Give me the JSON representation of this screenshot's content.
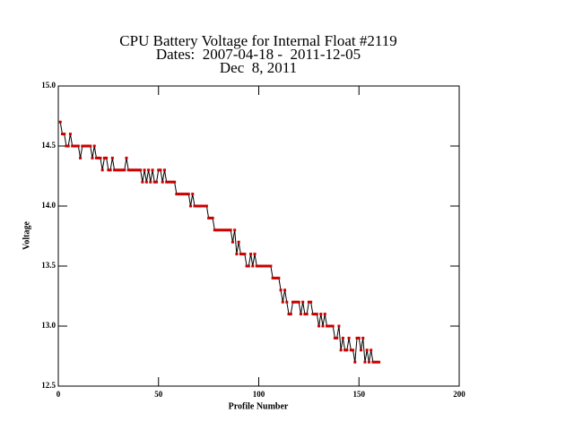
{
  "chart_data": {
    "type": "line",
    "title": [
      "CPU Battery Voltage for Internal Float #2119",
      "Dates:  2007-04-18 -  2011-12-05",
      "Dec  8, 2011"
    ],
    "x_label": "Profile Number",
    "y_label": "Voltage",
    "line_color": "#000000",
    "marker_color": "#cc0000",
    "xlim": [
      0,
      200
    ],
    "xticks": [
      0,
      50,
      100,
      150,
      200
    ],
    "ylim": [
      12.5,
      15
    ],
    "yticks": [
      {
        "value": 15,
        "label": "15.0"
      },
      14.5,
      {
        "value": 14,
        "label": "14.0"
      },
      13.5,
      {
        "value": 13,
        "label": "13.0"
      },
      12.5
    ],
    "x": [
      1,
      2,
      3,
      4,
      5,
      6,
      7,
      8,
      9,
      10,
      11,
      12,
      13,
      14,
      15,
      16,
      17,
      18,
      19,
      20,
      21,
      22,
      23,
      24,
      25,
      26,
      27,
      28,
      29,
      30,
      31,
      32,
      33,
      34,
      35,
      36,
      37,
      38,
      39,
      40,
      41,
      42,
      43,
      44,
      45,
      46,
      47,
      48,
      49,
      50,
      51,
      52,
      53,
      54,
      55,
      56,
      57,
      58,
      59,
      60,
      61,
      62,
      63,
      64,
      65,
      66,
      67,
      68,
      69,
      70,
      71,
      72,
      73,
      74,
      75,
      76,
      77,
      78,
      79,
      80,
      81,
      82,
      83,
      84,
      85,
      86,
      87,
      88,
      89,
      90,
      91,
      92,
      93,
      94,
      95,
      96,
      97,
      98,
      99,
      100,
      101,
      102,
      103,
      104,
      105,
      106,
      107,
      108,
      109,
      110,
      111,
      112,
      113,
      114,
      115,
      116,
      117,
      118,
      119,
      120,
      121,
      122,
      123,
      124,
      125,
      126,
      127,
      128,
      129,
      130,
      131,
      132,
      133,
      134,
      135,
      136,
      137,
      138,
      139,
      140,
      141,
      142,
      143,
      144,
      145,
      146,
      147,
      148,
      149,
      150,
      151,
      152,
      153,
      154,
      155,
      156,
      157,
      158,
      159,
      160
    ],
    "values": [
      14.7,
      14.6,
      14.6,
      14.5,
      14.5,
      14.6,
      14.5,
      14.5,
      14.5,
      14.5,
      14.4,
      14.5,
      14.5,
      14.5,
      14.5,
      14.5,
      14.4,
      14.5,
      14.4,
      14.4,
      14.4,
      14.3,
      14.4,
      14.4,
      14.3,
      14.3,
      14.4,
      14.3,
      14.3,
      14.3,
      14.3,
      14.3,
      14.3,
      14.4,
      14.3,
      14.3,
      14.3,
      14.3,
      14.3,
      14.3,
      14.3,
      14.2,
      14.3,
      14.2,
      14.3,
      14.2,
      14.3,
      14.2,
      14.2,
      14.3,
      14.3,
      14.2,
      14.3,
      14.2,
      14.2,
      14.2,
      14.2,
      14.2,
      14.1,
      14.1,
      14.1,
      14.1,
      14.1,
      14.1,
      14.1,
      14.0,
      14.1,
      14.0,
      14.0,
      14.0,
      14.0,
      14.0,
      14.0,
      14.0,
      13.9,
      13.9,
      13.9,
      13.8,
      13.8,
      13.8,
      13.8,
      13.8,
      13.8,
      13.8,
      13.8,
      13.8,
      13.7,
      13.8,
      13.6,
      13.7,
      13.6,
      13.6,
      13.6,
      13.5,
      13.5,
      13.6,
      13.5,
      13.6,
      13.5,
      13.5,
      13.5,
      13.5,
      13.5,
      13.5,
      13.5,
      13.5,
      13.4,
      13.4,
      13.4,
      13.4,
      13.3,
      13.2,
      13.3,
      13.2,
      13.1,
      13.1,
      13.2,
      13.2,
      13.2,
      13.2,
      13.1,
      13.2,
      13.1,
      13.1,
      13.2,
      13.2,
      13.1,
      13.1,
      13.1,
      13.0,
      13.1,
      13.0,
      13.1,
      13.0,
      13.0,
      13.0,
      13.0,
      12.9,
      12.9,
      13.0,
      12.8,
      12.9,
      12.8,
      12.8,
      12.9,
      12.8,
      12.8,
      12.7,
      12.9,
      12.9,
      12.8,
      12.9,
      12.7,
      12.8,
      12.7,
      12.8,
      12.7,
      12.7,
      12.7,
      12.7
    ]
  }
}
